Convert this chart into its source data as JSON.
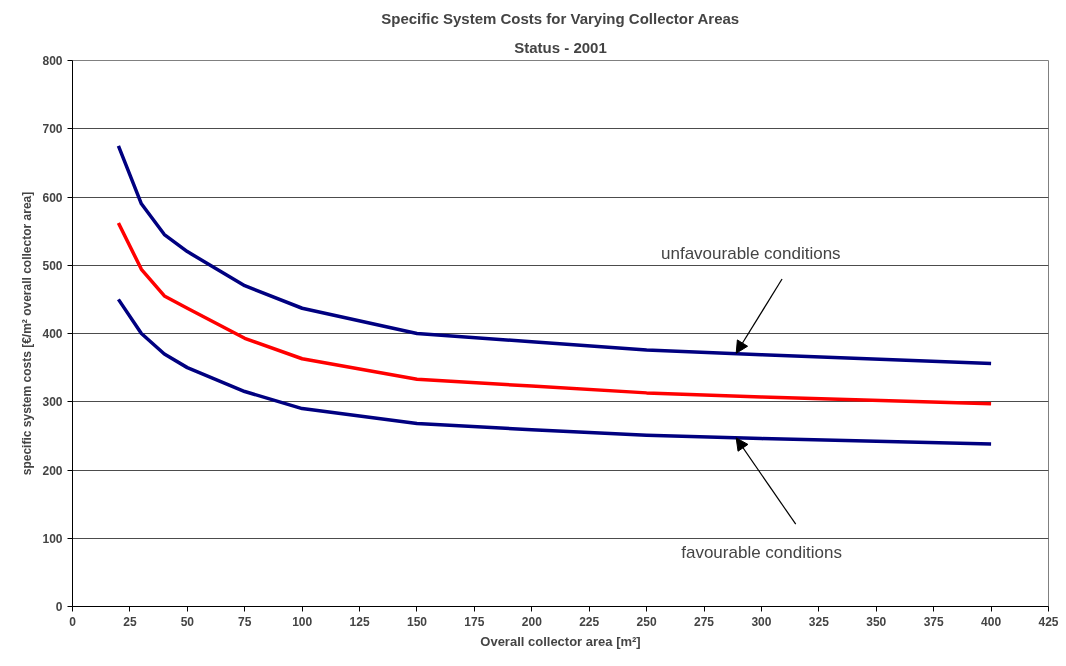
{
  "chart_data": {
    "type": "line",
    "title": "Specific System Costs for Varying Collector Areas",
    "subtitle": "Status - 2001",
    "xlabel": "Overall collector area [m²]",
    "ylabel": "specific system costs [€/m² overall collector area]",
    "x": [
      20,
      30,
      40,
      50,
      75,
      100,
      150,
      200,
      250,
      300,
      400
    ],
    "series": [
      {
        "color": "#000080",
        "values": [
          675,
          590,
          545,
          520,
          470,
          437,
          400,
          388,
          376,
          369,
          356
        ]
      },
      {
        "color": "#ff0000",
        "values": [
          562,
          494,
          455,
          437,
          393,
          363,
          333,
          323,
          313,
          307,
          297
        ]
      },
      {
        "color": "#000080",
        "values": [
          450,
          400,
          370,
          350,
          315,
          290,
          268,
          259,
          251,
          246,
          238
        ]
      }
    ],
    "xlim": [
      0,
      425
    ],
    "xticks": [
      0,
      25,
      50,
      75,
      100,
      125,
      150,
      175,
      200,
      225,
      250,
      275,
      300,
      325,
      350,
      375,
      400,
      425
    ],
    "ylim": [
      0,
      800
    ],
    "yticks": [
      0,
      100,
      200,
      300,
      400,
      500,
      600,
      700,
      800
    ],
    "grid": "y",
    "marker": "none",
    "line_style": "solid",
    "annotations": [
      {
        "text": "unfavourable conditions",
        "x": 289,
        "y": 371
      },
      {
        "text": "favourable conditions",
        "x": 289,
        "y": 247
      }
    ]
  }
}
